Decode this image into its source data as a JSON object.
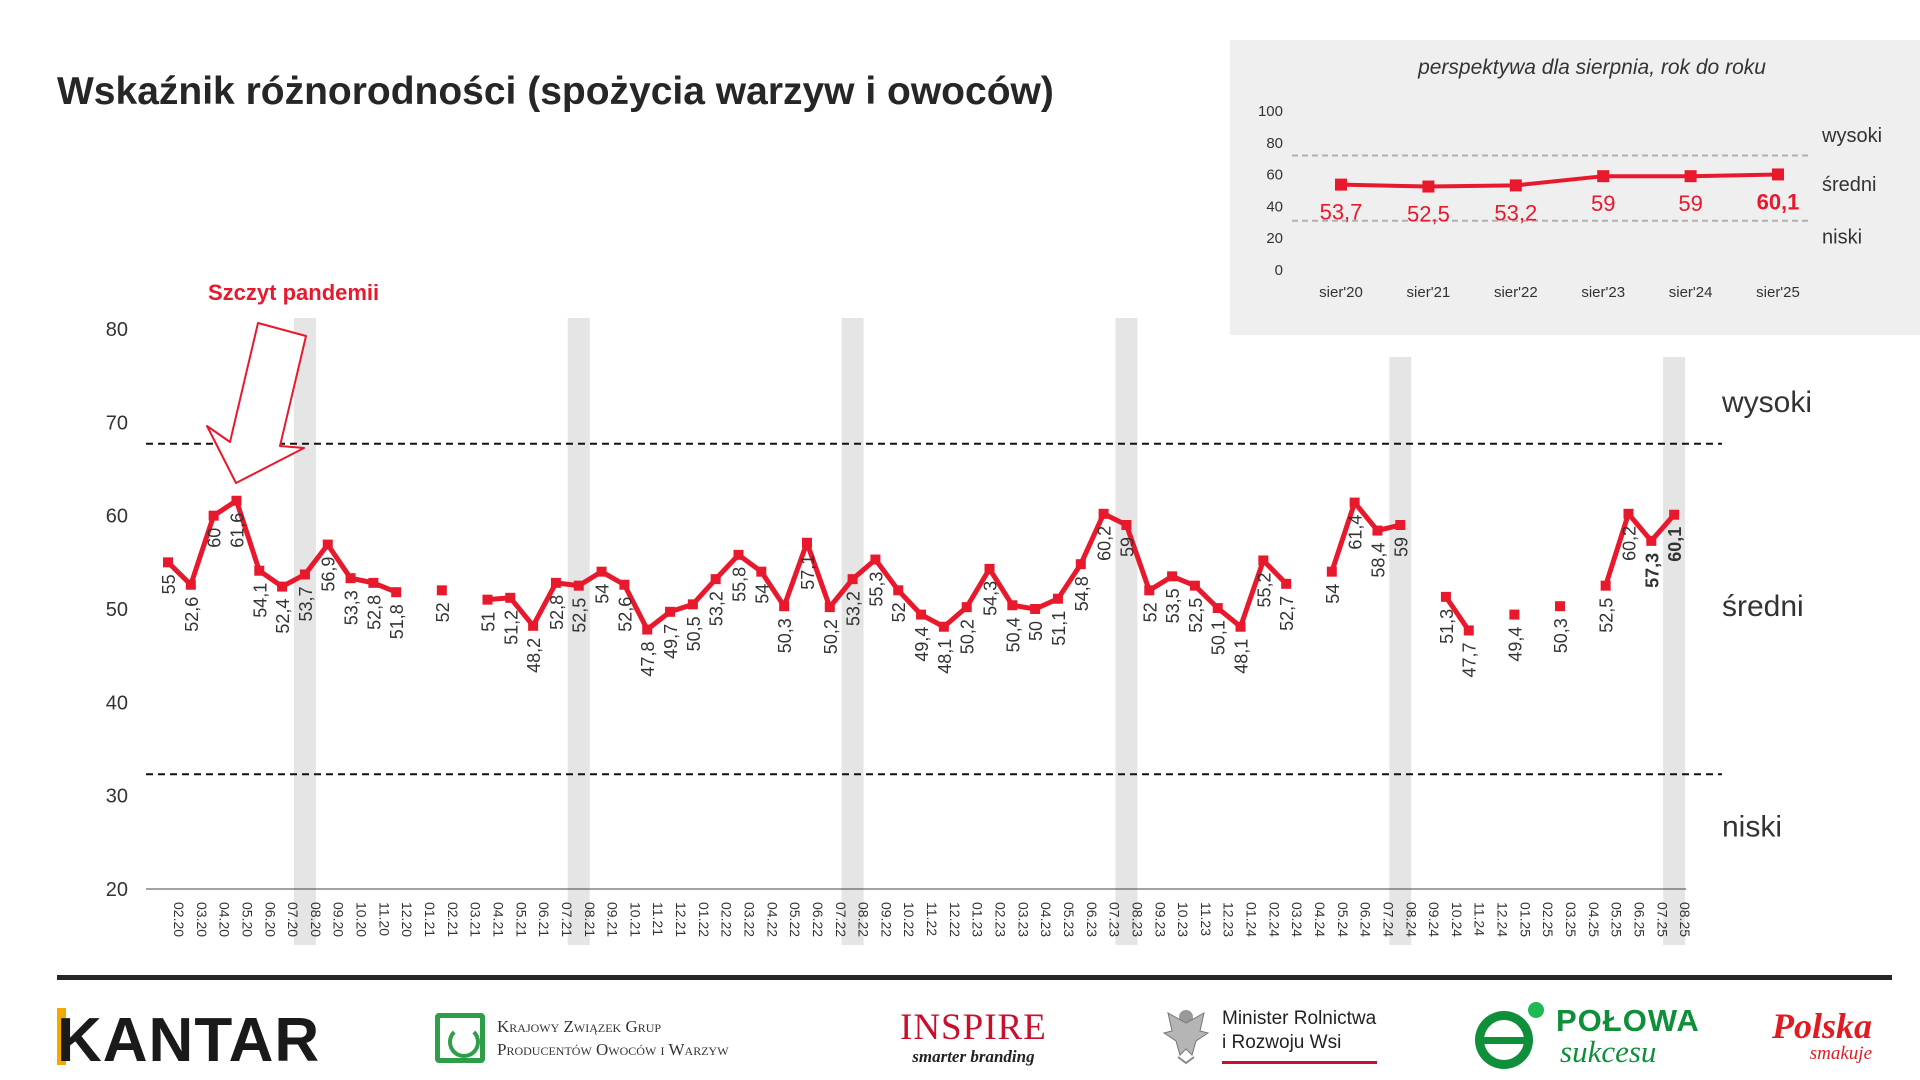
{
  "title": "Wskaźnik różnorodności (spożycia warzyw i owoców)",
  "chart_data": [
    {
      "type": "line",
      "title": "Wskaźnik różnorodności (spożycia warzyw i owoców)",
      "annotation": "Szczyt pandemii",
      "ylim": [
        20,
        80
      ],
      "yticks": [
        20,
        30,
        40,
        50,
        60,
        70,
        80
      ],
      "line_color": "#e8192c",
      "thresholds": [
        {
          "name": "wysoki",
          "value": 67.7
        },
        {
          "name": "niski",
          "value": 32.3
        }
      ],
      "zone_labels": [
        {
          "label": "wysoki",
          "value": 72.2
        },
        {
          "label": "średni",
          "value": 50.3
        },
        {
          "label": "niski",
          "value": 26.7
        }
      ],
      "categories": [
        "02.20",
        "03.20",
        "04.20",
        "05.20",
        "06.20",
        "07.20",
        "08.20",
        "09.20",
        "10.20",
        "11.20",
        "12.20",
        "01.21",
        "02.21",
        "03.21",
        "04.21",
        "05.21",
        "06.21",
        "07.21",
        "08.21",
        "09.21",
        "10.21",
        "11.21",
        "12.21",
        "01.22",
        "02.22",
        "03.22",
        "04.22",
        "05.22",
        "06.22",
        "07.22",
        "08.22",
        "09.22",
        "10.22",
        "11.22",
        "12.22",
        "01.23",
        "02.23",
        "03.23",
        "04.23",
        "05.23",
        "06.23",
        "07.23",
        "08.23",
        "09.23",
        "10.23",
        "11.23",
        "12.23",
        "01.24",
        "02.24",
        "03.24",
        "04.24",
        "05.24",
        "06.24",
        "07.24",
        "08.24",
        "09.24",
        "10.24",
        "11.24",
        "12.24",
        "01.25",
        "02.25",
        "03.25",
        "04.25",
        "05.25",
        "06.25",
        "07.25",
        "08.25"
      ],
      "values": [
        55,
        52.6,
        60,
        61.6,
        54.1,
        52.4,
        53.7,
        56.9,
        53.3,
        52.8,
        51.8,
        null,
        52,
        null,
        51,
        51.2,
        48.2,
        52.8,
        52.5,
        54,
        52.6,
        47.8,
        49.7,
        50.5,
        53.2,
        55.8,
        54,
        50.3,
        57.1,
        50.2,
        53.2,
        55.3,
        52,
        49.4,
        48.1,
        50.2,
        54.3,
        50.4,
        50,
        51.1,
        54.8,
        60.2,
        59,
        52,
        53.5,
        52.5,
        50.1,
        48.1,
        55.2,
        52.7,
        null,
        54,
        61.4,
        58.4,
        59,
        null,
        51.3,
        47.7,
        null,
        49.4,
        null,
        50.3,
        null,
        52.5,
        60.2,
        57.3,
        60.1
      ],
      "value_labels": [
        "55",
        "52,6",
        "60",
        "61,6",
        "54,1",
        "52,4",
        "53,7",
        "56,9",
        "53,3",
        "52,8",
        "51,8",
        "",
        "52",
        "",
        "51",
        "51,2",
        "48,2",
        "52,8",
        "52,5",
        "54",
        "52,6",
        "47,8",
        "49,7",
        "50,5",
        "53,2",
        "55,8",
        "54",
        "50,3",
        "57,1",
        "50,2",
        "53,2",
        "55,3",
        "52",
        "49,4",
        "48,1",
        "50,2",
        "54,3",
        "50,4",
        "50",
        "51,1",
        "54,8",
        "60,2",
        "59",
        "52",
        "53,5",
        "52,5",
        "50,1",
        "48,1",
        "55,2",
        "52,7",
        "",
        "54",
        "61,4",
        "58,4",
        "59",
        "",
        "51,3",
        "47,7",
        "",
        "49,4",
        "",
        "50,3",
        "",
        "52,5",
        "60,2",
        "57,3",
        "60,1"
      ],
      "bold_labels": [
        "07.25",
        "08.25"
      ],
      "highlighted_months": [
        "08.20",
        "08.21",
        "08.22",
        "08.23",
        "08.24",
        "08.25"
      ]
    },
    {
      "type": "line",
      "title": "perspektywa dla sierpnia, rok do roku",
      "ylim": [
        0,
        100
      ],
      "yticks": [
        0,
        20,
        40,
        60,
        80,
        100
      ],
      "thresholds": [
        {
          "name": "wysoki",
          "value": 72
        },
        {
          "name": "niski",
          "value": 31
        }
      ],
      "zone_labels": [
        {
          "label": "wysoki",
          "value": 85
        },
        {
          "label": "średni",
          "value": 54
        },
        {
          "label": "niski",
          "value": 21
        }
      ],
      "categories": [
        "sier'20",
        "sier'21",
        "sier'22",
        "sier'23",
        "sier'24",
        "sier'25"
      ],
      "values": [
        53.7,
        52.5,
        53.2,
        59,
        59,
        60.1
      ],
      "value_labels": [
        "53,7",
        "52,5",
        "53,2",
        "59",
        "59",
        "60,1"
      ]
    }
  ],
  "logos": {
    "kantar": "KANTAR",
    "kzg_line1": "Krajowy Związek Grup",
    "kzg_line2": "Producentów Owoców i Warzyw",
    "inspire_name": "INSPIRE",
    "inspire_tag": "smarter branding",
    "minister_line1": "Minister Rolnictwa",
    "minister_line2": "i Rozwoju Wsi",
    "polowa_line1": "POŁOWA",
    "polowa_line2": "sukcesu",
    "polska_line1": "Polska",
    "polska_line2": "smakuje"
  },
  "colors": {
    "accent": "#e8192c",
    "band": "#e5e5e5",
    "inset_bg": "#efefef"
  }
}
